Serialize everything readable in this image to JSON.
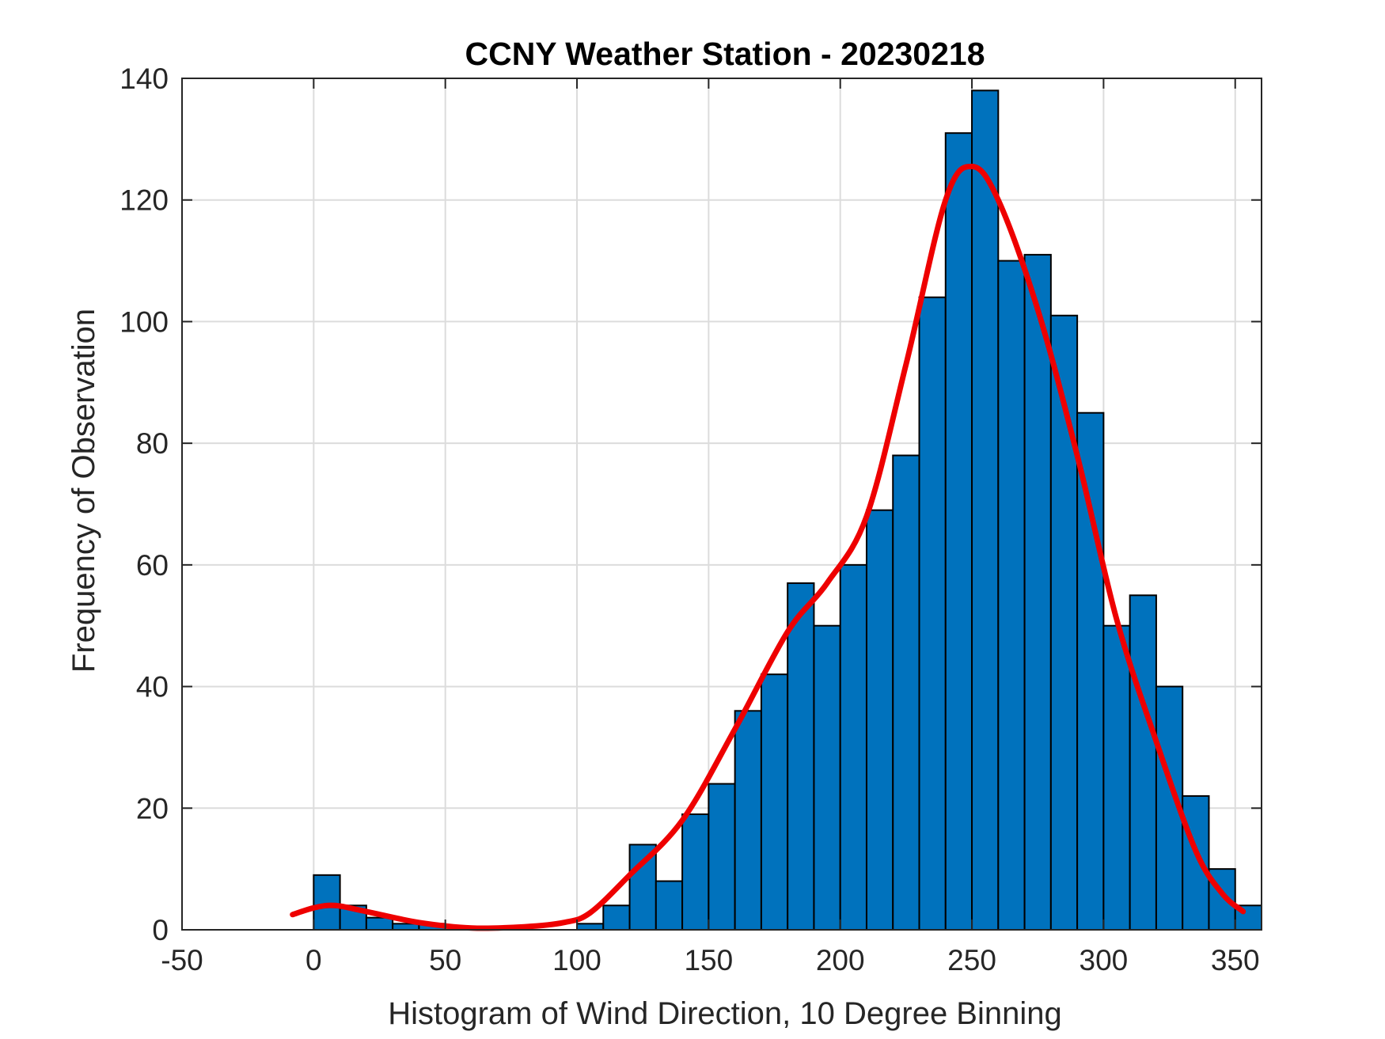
{
  "chart_data": {
    "type": "bar",
    "title": "CCNY Weather Station - 20230218",
    "xlabel": "Histogram of Wind Direction, 10 Degree Binning",
    "ylabel": "Frequency of Observation",
    "xlim": [
      -50,
      360
    ],
    "ylim": [
      0,
      140
    ],
    "xticks": [
      -50,
      0,
      50,
      100,
      150,
      200,
      250,
      300,
      350
    ],
    "yticks": [
      0,
      20,
      40,
      60,
      80,
      100,
      120,
      140
    ],
    "grid": true,
    "bin_width": 10,
    "bin_edges": [
      0,
      10,
      20,
      30,
      40,
      50,
      60,
      70,
      80,
      90,
      100,
      110,
      120,
      130,
      140,
      150,
      160,
      170,
      180,
      190,
      200,
      210,
      220,
      230,
      240,
      250,
      260,
      270,
      280,
      290,
      300,
      310,
      320,
      330,
      340,
      350,
      360
    ],
    "values": [
      9,
      4,
      2,
      1,
      1,
      0,
      0,
      0,
      0,
      0,
      1,
      4,
      14,
      8,
      19,
      24,
      36,
      42,
      57,
      50,
      60,
      69,
      78,
      104,
      131,
      138,
      110,
      111,
      101,
      85,
      50,
      55,
      40,
      22,
      10,
      4
    ],
    "fit_curve": {
      "x": [
        -8,
        0,
        8,
        20,
        40,
        60,
        80,
        95,
        105,
        120,
        140,
        160,
        180,
        195,
        210,
        225,
        240,
        250,
        260,
        275,
        290,
        305,
        320,
        335,
        345,
        353
      ],
      "y": [
        2.5,
        3.6,
        4.0,
        3.0,
        1.2,
        0.3,
        0.5,
        1.2,
        2.8,
        9.0,
        18.0,
        33.0,
        49.0,
        57.0,
        68.0,
        93.0,
        120.0,
        125.5,
        120.0,
        102.0,
        78.0,
        51.0,
        31.0,
        13.0,
        6.0,
        3.0
      ]
    },
    "colors": {
      "bar_fill": "#0072BD",
      "bar_edge": "#000000",
      "fit_line": "#EE0000",
      "grid": "#DCDCDC"
    }
  }
}
